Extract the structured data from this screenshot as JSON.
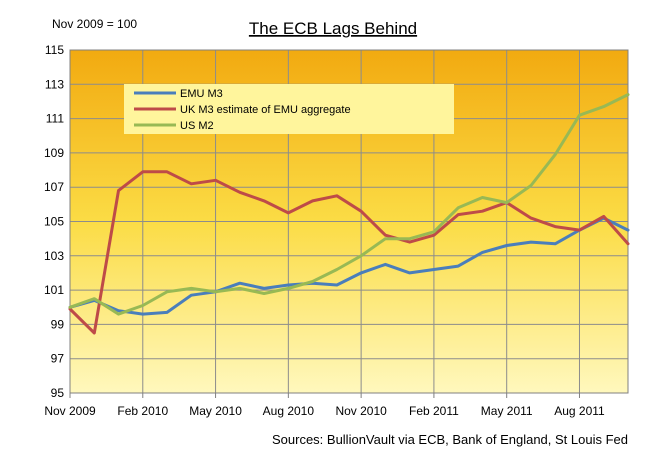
{
  "chart_data": {
    "type": "line",
    "title": "The ECB Lags Behind",
    "index_note": "Nov 2009 = 100",
    "source": "Sources: BullionVault  via ECB, Bank of England, St Louis Fed",
    "ylim": [
      95,
      115
    ],
    "yticks": [
      "95",
      "97",
      "99",
      "101",
      "103",
      "105",
      "107",
      "109",
      "111",
      "113",
      "115"
    ],
    "x_tick_labels": [
      "Nov 2009",
      "Feb 2010",
      "May 2010",
      "Aug 2010",
      "Nov 2010",
      "Feb 2011",
      "May 2011",
      "Aug 2011"
    ],
    "legend_position": "top-left",
    "grid": true,
    "n_points": 24,
    "series": [
      {
        "name": "EMU M3",
        "color": "#4a7ebb",
        "values": [
          100.0,
          100.4,
          99.8,
          99.6,
          99.7,
          100.7,
          100.9,
          101.4,
          101.1,
          101.3,
          101.4,
          101.3,
          102.0,
          102.5,
          102.0,
          102.2,
          102.4,
          103.2,
          103.6,
          103.8,
          103.7,
          104.5,
          105.2,
          104.5
        ]
      },
      {
        "name": "UK M3 estimate of EMU aggregate",
        "color": "#be4b48",
        "values": [
          99.9,
          98.5,
          106.8,
          107.9,
          107.9,
          107.2,
          107.4,
          106.7,
          106.2,
          105.5,
          106.2,
          106.5,
          105.6,
          104.2,
          103.8,
          104.2,
          105.4,
          105.6,
          106.1,
          105.2,
          104.7,
          104.5,
          105.3,
          103.7
        ]
      },
      {
        "name": "US M2",
        "color": "#98b954",
        "values": [
          100.0,
          100.5,
          99.6,
          100.1,
          100.9,
          101.1,
          100.9,
          101.1,
          100.8,
          101.1,
          101.5,
          102.2,
          103.0,
          104.0,
          104.0,
          104.4,
          105.8,
          106.4,
          106.1,
          107.1,
          108.9,
          111.2,
          111.7,
          112.4
        ]
      }
    ]
  }
}
